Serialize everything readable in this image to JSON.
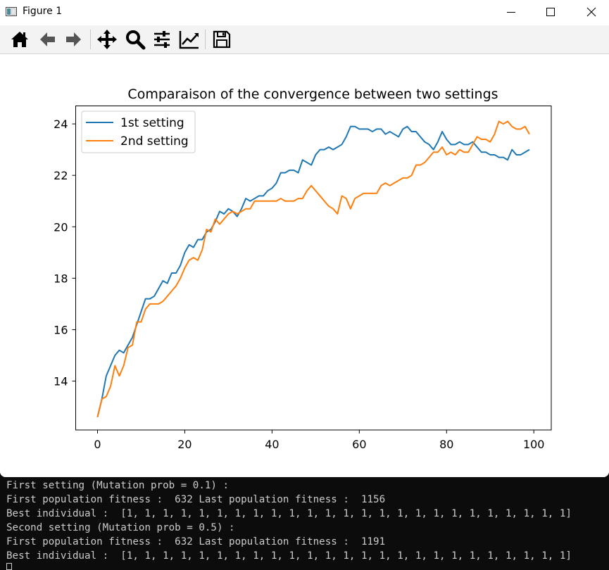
{
  "window": {
    "title": "Figure 1"
  },
  "toolbar": {
    "buttons": [
      "home-icon",
      "back-arrow-icon",
      "forward-arrow-icon",
      "pan-move-icon",
      "zoom-magnifier-icon",
      "configure-subplots-icon",
      "edit-axis-icon",
      "save-floppy-icon"
    ]
  },
  "chart_data": {
    "type": "line",
    "title": "Comparaison of the convergence between two settings",
    "xlabel": "",
    "ylabel": "",
    "xlim": [
      -5,
      104
    ],
    "ylim": [
      12.1,
      24.7
    ],
    "xticks": [
      0,
      20,
      40,
      60,
      80,
      100
    ],
    "yticks": [
      14,
      16,
      18,
      20,
      22,
      24
    ],
    "grid": false,
    "legend": "top-left",
    "x": [
      0,
      1,
      2,
      3,
      4,
      5,
      6,
      7,
      8,
      9,
      10,
      11,
      12,
      13,
      14,
      15,
      16,
      17,
      18,
      19,
      20,
      21,
      22,
      23,
      24,
      25,
      26,
      27,
      28,
      29,
      30,
      31,
      32,
      33,
      34,
      35,
      36,
      37,
      38,
      39,
      40,
      41,
      42,
      43,
      44,
      45,
      46,
      47,
      48,
      49,
      50,
      51,
      52,
      53,
      54,
      55,
      56,
      57,
      58,
      59,
      60,
      61,
      62,
      63,
      64,
      65,
      66,
      67,
      68,
      69,
      70,
      71,
      72,
      73,
      74,
      75,
      76,
      77,
      78,
      79,
      80,
      81,
      82,
      83,
      84,
      85,
      86,
      87,
      88,
      89,
      90,
      91,
      92,
      93,
      94,
      95,
      96,
      97,
      98,
      99
    ],
    "series": [
      {
        "name": "1st setting",
        "color": "#1f77b4",
        "values": [
          12.6,
          13.3,
          14.2,
          14.6,
          15.0,
          15.2,
          15.1,
          15.4,
          15.7,
          16.2,
          16.7,
          17.2,
          17.2,
          17.3,
          17.6,
          17.9,
          17.8,
          18.2,
          18.2,
          18.5,
          19.0,
          19.3,
          19.2,
          19.5,
          19.5,
          19.8,
          19.9,
          20.2,
          20.6,
          20.5,
          20.7,
          20.6,
          20.4,
          20.7,
          21.1,
          21.0,
          21.1,
          21.2,
          21.2,
          21.4,
          21.5,
          21.7,
          22.1,
          22.1,
          22.2,
          22.2,
          22.1,
          22.6,
          22.5,
          22.4,
          22.8,
          23.0,
          23.0,
          23.1,
          23.0,
          23.1,
          23.2,
          23.5,
          23.9,
          23.9,
          23.8,
          23.8,
          23.8,
          23.7,
          23.8,
          23.8,
          23.6,
          23.7,
          23.6,
          23.5,
          23.8,
          23.9,
          23.7,
          23.7,
          23.5,
          23.3,
          23.2,
          23.0,
          23.3,
          23.7,
          23.4,
          23.2,
          23.2,
          23.3,
          23.2,
          23.2,
          23.3,
          23.1,
          22.9,
          22.9,
          22.8,
          22.8,
          22.7,
          22.7,
          22.6,
          23.0,
          22.8,
          22.8,
          22.9,
          23.0
        ]
      },
      {
        "name": "2nd setting",
        "color": "#ff7f0e",
        "values": [
          12.6,
          13.3,
          13.4,
          13.8,
          14.6,
          14.2,
          14.6,
          15.3,
          15.4,
          16.3,
          16.3,
          16.8,
          17.0,
          17.0,
          17.0,
          17.1,
          17.3,
          17.5,
          17.7,
          18.0,
          18.4,
          18.7,
          18.8,
          18.7,
          19.1,
          19.9,
          19.8,
          20.3,
          20.1,
          20.3,
          20.5,
          20.6,
          20.5,
          20.6,
          20.7,
          20.7,
          21.0,
          21.0,
          21.0,
          21.0,
          21.0,
          21.0,
          21.1,
          21.0,
          21.0,
          21.0,
          21.1,
          21.1,
          21.4,
          21.6,
          21.4,
          21.2,
          21.0,
          20.8,
          20.7,
          20.5,
          21.2,
          21.1,
          20.7,
          21.1,
          21.2,
          21.3,
          21.3,
          21.3,
          21.3,
          21.6,
          21.7,
          21.6,
          21.7,
          21.8,
          21.9,
          21.9,
          22.0,
          22.4,
          22.4,
          22.5,
          22.7,
          22.9,
          22.9,
          23.1,
          22.8,
          22.9,
          22.8,
          23.0,
          22.9,
          22.9,
          23.2,
          23.5,
          23.4,
          23.4,
          23.3,
          23.6,
          24.1,
          24.0,
          24.1,
          23.9,
          23.8,
          23.8,
          23.9,
          23.6
        ]
      }
    ]
  },
  "console": {
    "lines": [
      "First setting (Mutation prob = 0.1) :",
      "First population fitness :  632 Last population fitness :  1156",
      "Best individual :  [1, 1, 1, 1, 1, 1, 1, 1, 1, 1, 1, 1, 1, 1, 1, 1, 1, 1, 1, 1, 1, 1, 1, 1, 1]",
      "Second setting (Mutation prob = 0.5) :",
      "First population fitness :  632 Last population fitness :  1191",
      "Best individual :  [1, 1, 1, 1, 1, 1, 1, 1, 1, 1, 1, 1, 1, 1, 1, 1, 1, 1, 1, 1, 1, 1, 1, 1, 1]"
    ]
  }
}
